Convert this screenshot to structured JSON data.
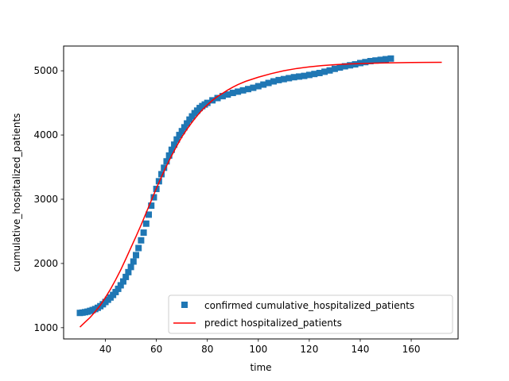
{
  "chart_data": {
    "type": "scatter",
    "xlabel": "time",
    "ylabel": "cumulative_hospitalized_patients",
    "xlim": [
      23.6,
      178.4
    ],
    "ylim": [
      825,
      5385
    ],
    "xticks": [
      40,
      60,
      80,
      100,
      120,
      140,
      160
    ],
    "yticks": [
      1000,
      2000,
      3000,
      4000,
      5000
    ],
    "legend_position": "lower-right",
    "series": [
      {
        "name": "confirmed cumulative_hospitalized_patients",
        "kind": "markers",
        "marker": "square",
        "color": "#1f77b4",
        "points": [
          [
            30,
            1230
          ],
          [
            31,
            1235
          ],
          [
            32,
            1242
          ],
          [
            33,
            1250
          ],
          [
            34,
            1262
          ],
          [
            35,
            1275
          ],
          [
            36,
            1290
          ],
          [
            37,
            1310
          ],
          [
            38,
            1335
          ],
          [
            39,
            1365
          ],
          [
            40,
            1400
          ],
          [
            41,
            1435
          ],
          [
            42,
            1470
          ],
          [
            43,
            1510
          ],
          [
            44,
            1555
          ],
          [
            45,
            1605
          ],
          [
            46,
            1660
          ],
          [
            47,
            1720
          ],
          [
            48,
            1790
          ],
          [
            49,
            1865
          ],
          [
            50,
            1945
          ],
          [
            51,
            2030
          ],
          [
            52,
            2130
          ],
          [
            53,
            2240
          ],
          [
            54,
            2360
          ],
          [
            55,
            2480
          ],
          [
            56,
            2620
          ],
          [
            57,
            2760
          ],
          [
            58,
            2900
          ],
          [
            59,
            3030
          ],
          [
            60,
            3160
          ],
          [
            61,
            3280
          ],
          [
            62,
            3390
          ],
          [
            63,
            3490
          ],
          [
            64,
            3590
          ],
          [
            65,
            3680
          ],
          [
            66,
            3770
          ],
          [
            67,
            3850
          ],
          [
            68,
            3930
          ],
          [
            69,
            4000
          ],
          [
            70,
            4060
          ],
          [
            71,
            4120
          ],
          [
            72,
            4180
          ],
          [
            73,
            4240
          ],
          [
            74,
            4290
          ],
          [
            75,
            4340
          ],
          [
            76,
            4380
          ],
          [
            77,
            4420
          ],
          [
            78,
            4450
          ],
          [
            79,
            4475
          ],
          [
            80,
            4500
          ],
          [
            82,
            4540
          ],
          [
            84,
            4575
          ],
          [
            86,
            4605
          ],
          [
            88,
            4630
          ],
          [
            90,
            4655
          ],
          [
            92,
            4675
          ],
          [
            94,
            4695
          ],
          [
            96,
            4715
          ],
          [
            98,
            4735
          ],
          [
            100,
            4760
          ],
          [
            102,
            4785
          ],
          [
            104,
            4810
          ],
          [
            106,
            4835
          ],
          [
            108,
            4855
          ],
          [
            110,
            4870
          ],
          [
            112,
            4885
          ],
          [
            114,
            4900
          ],
          [
            116,
            4910
          ],
          [
            118,
            4920
          ],
          [
            120,
            4935
          ],
          [
            122,
            4950
          ],
          [
            124,
            4965
          ],
          [
            126,
            4985
          ],
          [
            128,
            5005
          ],
          [
            130,
            5030
          ],
          [
            132,
            5050
          ],
          [
            134,
            5070
          ],
          [
            136,
            5085
          ],
          [
            138,
            5100
          ],
          [
            140,
            5120
          ],
          [
            142,
            5135
          ],
          [
            144,
            5150
          ],
          [
            146,
            5160
          ],
          [
            148,
            5170
          ],
          [
            150,
            5180
          ],
          [
            152,
            5190
          ]
        ]
      },
      {
        "name": "predict hospitalized_patients",
        "kind": "line",
        "color": "#ff0000",
        "points": [
          [
            30,
            1010
          ],
          [
            32,
            1085
          ],
          [
            34,
            1160
          ],
          [
            36,
            1250
          ],
          [
            38,
            1350
          ],
          [
            40,
            1470
          ],
          [
            42,
            1600
          ],
          [
            44,
            1745
          ],
          [
            46,
            1900
          ],
          [
            48,
            2070
          ],
          [
            50,
            2245
          ],
          [
            52,
            2420
          ],
          [
            54,
            2600
          ],
          [
            56,
            2790
          ],
          [
            58,
            2980
          ],
          [
            60,
            3170
          ],
          [
            62,
            3350
          ],
          [
            64,
            3520
          ],
          [
            66,
            3680
          ],
          [
            68,
            3830
          ],
          [
            70,
            3970
          ],
          [
            72,
            4090
          ],
          [
            74,
            4200
          ],
          [
            76,
            4300
          ],
          [
            78,
            4390
          ],
          [
            80,
            4470
          ],
          [
            82,
            4540
          ],
          [
            84,
            4600
          ],
          [
            86,
            4650
          ],
          [
            88,
            4700
          ],
          [
            90,
            4745
          ],
          [
            92,
            4785
          ],
          [
            95,
            4835
          ],
          [
            100,
            4900
          ],
          [
            105,
            4955
          ],
          [
            110,
            5000
          ],
          [
            115,
            5035
          ],
          [
            120,
            5060
          ],
          [
            125,
            5080
          ],
          [
            130,
            5095
          ],
          [
            135,
            5105
          ],
          [
            140,
            5112
          ],
          [
            145,
            5118
          ],
          [
            150,
            5122
          ],
          [
            155,
            5125
          ],
          [
            160,
            5128
          ],
          [
            165,
            5130
          ],
          [
            172,
            5132
          ]
        ]
      }
    ]
  }
}
